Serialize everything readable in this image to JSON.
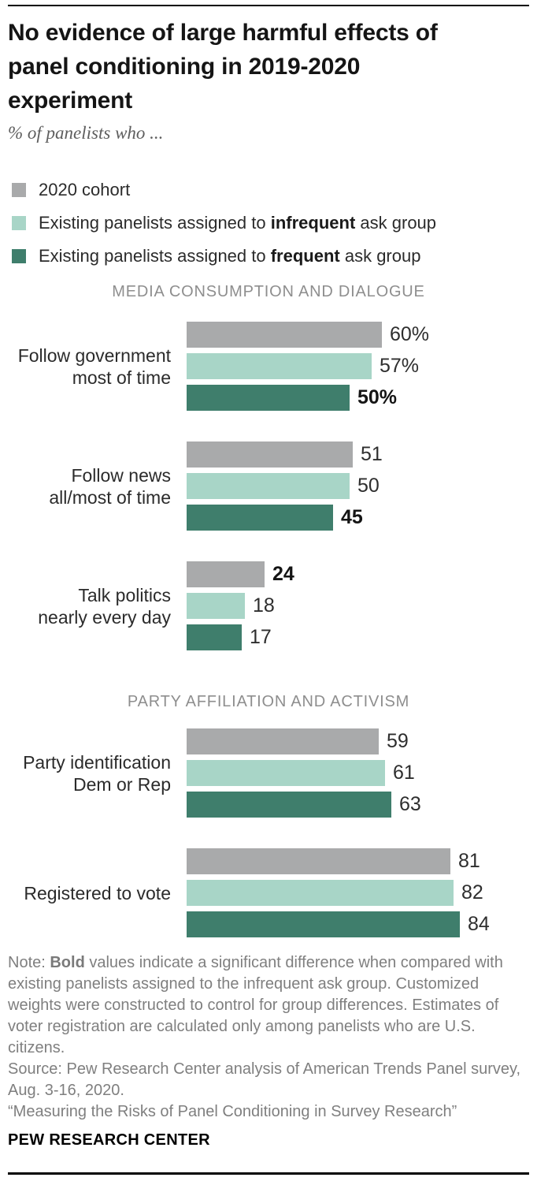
{
  "header": {
    "title_lines": [
      "No evidence of large harmful effects of",
      "panel conditioning in 2019-2020",
      "experiment"
    ],
    "subtitle": "% of panelists who ..."
  },
  "legend": {
    "items": [
      {
        "swatch_color": "#a9aaab",
        "pre": "2020 cohort",
        "bold": "",
        "post": ""
      },
      {
        "swatch_color": "#a8d5c7",
        "pre": "Existing panelists assigned to ",
        "bold": "infrequent",
        "post": " ask group"
      },
      {
        "swatch_color": "#3f7e6c",
        "pre": "Existing panelists assigned to ",
        "bold": "frequent",
        "post": " ask group"
      }
    ]
  },
  "chart_data": {
    "type": "bar",
    "orientation": "horizontal",
    "unit": "% of panelists",
    "axis_range": [
      0,
      100
    ],
    "grid": false,
    "legend_position": "top-left",
    "series": [
      "2020 cohort",
      "Existing panelists assigned to infrequent ask group",
      "Existing panelists assigned to frequent ask group"
    ],
    "series_colors": [
      "#a9aaab",
      "#a8d5c7",
      "#3f7e6c"
    ],
    "sections": [
      {
        "header": "MEDIA CONSUMPTION AND DIALOGUE",
        "groups": [
          {
            "label_lines": [
              "Follow government",
              "most of time"
            ],
            "values": [
              60,
              57,
              50
            ],
            "value_labels": [
              "60%",
              "57%",
              "50%"
            ],
            "bold": [
              false,
              false,
              true
            ]
          },
          {
            "label_lines": [
              "Follow news",
              "all/most of time"
            ],
            "values": [
              51,
              50,
              45
            ],
            "value_labels": [
              "51",
              "50",
              "45"
            ],
            "bold": [
              false,
              false,
              true
            ]
          },
          {
            "label_lines": [
              "Talk politics",
              "nearly every day"
            ],
            "values": [
              24,
              18,
              17
            ],
            "value_labels": [
              "24",
              "18",
              "17"
            ],
            "bold": [
              true,
              false,
              false
            ]
          }
        ]
      },
      {
        "header": "PARTY AFFILIATION AND ACTIVISM",
        "groups": [
          {
            "label_lines": [
              "Party identification",
              "Dem or Rep"
            ],
            "values": [
              59,
              61,
              63
            ],
            "value_labels": [
              "59",
              "61",
              "63"
            ],
            "bold": [
              false,
              false,
              false
            ]
          },
          {
            "label_lines": [
              "Registered to vote"
            ],
            "values": [
              81,
              82,
              84
            ],
            "value_labels": [
              "81",
              "82",
              "84"
            ],
            "bold": [
              false,
              false,
              false
            ]
          }
        ]
      }
    ]
  },
  "footer": {
    "note_label": "Note: ",
    "note_bold": "Bold",
    "note_rest": " values indicate a significant difference when compared with existing panelists assigned to the infrequent ask group. Customized weights were constructed to control for group differences. Estimates of voter registration are calculated only among panelists who are U.S. citizens.",
    "source": "Source: Pew Research Center analysis of American Trends Panel survey, Aug. 3-16, 2020.",
    "quote": "“Measuring the Risks of Panel Conditioning in Survey Research”",
    "brand": "PEW RESEARCH CENTER"
  }
}
